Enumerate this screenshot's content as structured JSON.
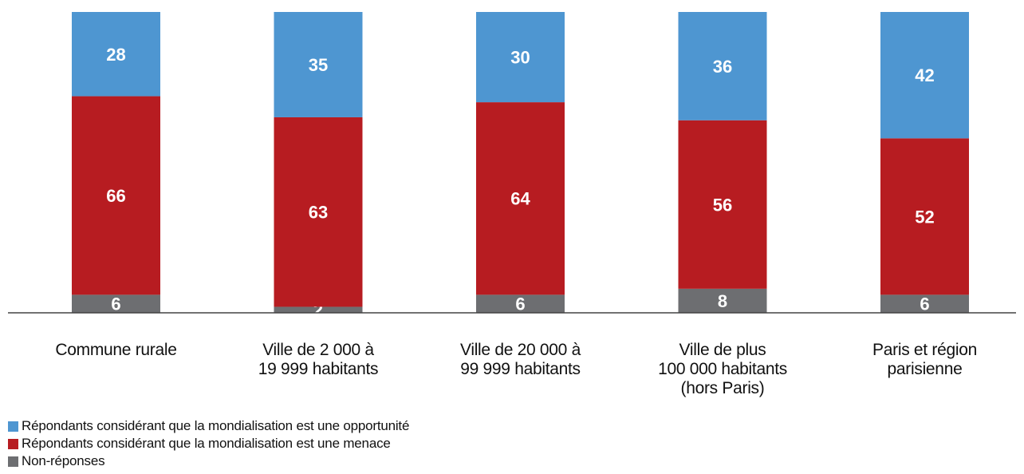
{
  "chart_data": {
    "type": "bar",
    "stacked": true,
    "categories": [
      [
        "Commune rurale"
      ],
      [
        "Ville de 2 000 à",
        "19 999 habitants"
      ],
      [
        "Ville de 20 000 à",
        "99 999 habitants"
      ],
      [
        "Ville de plus",
        "100 000 habitants",
        "(hors Paris)"
      ],
      [
        "Paris et région",
        "parisienne"
      ]
    ],
    "series": [
      {
        "name": "Non-réponses",
        "color": "#6d6e71",
        "values": [
          6,
          2,
          6,
          8,
          6
        ]
      },
      {
        "name": "Répondants considérant que la mondialisation est une menace",
        "color": "#b71c21",
        "values": [
          66,
          63,
          64,
          56,
          52
        ]
      },
      {
        "name": "Répondants considérant que la mondialisation est une opportunité",
        "color": "#4e96d1",
        "values": [
          28,
          35,
          30,
          36,
          42
        ]
      }
    ],
    "ylim": [
      0,
      100
    ],
    "grid": false,
    "legend_position": "bottom-left"
  },
  "legend": [
    {
      "label": "Répondants considérant que la mondialisation est une opportunité",
      "color": "#4e96d1"
    },
    {
      "label": "Répondants considérant que la mondialisation est une menace",
      "color": "#b71c21"
    },
    {
      "label": "Non-réponses",
      "color": "#6d6e71"
    }
  ]
}
